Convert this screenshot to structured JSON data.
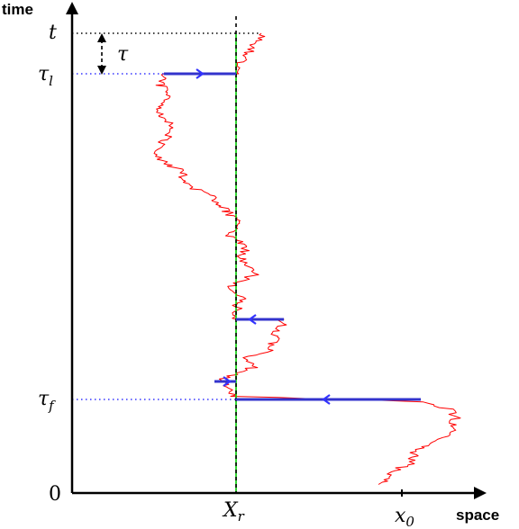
{
  "axes": {
    "y_title": "time",
    "x_title": "space",
    "origin_label": "0"
  },
  "labels": {
    "t": "t",
    "tau": "τ",
    "tau_l": {
      "base": "τ",
      "sub": "l"
    },
    "tau_f": {
      "base": "τ",
      "sub": "f"
    },
    "X_r": {
      "base": "X",
      "sub": "r"
    },
    "x_0": {
      "base": "x",
      "sub": "0"
    }
  },
  "colors": {
    "path": "#ff0000",
    "jump": "#3333cc",
    "reset_line": "#00cc00",
    "reference_line": "#000000",
    "guide_dots": "#3333ff"
  },
  "icons": {
    "axis_arrow": "arrow-head-icon",
    "jump_arrow": "chevron-arrow-icon"
  }
}
